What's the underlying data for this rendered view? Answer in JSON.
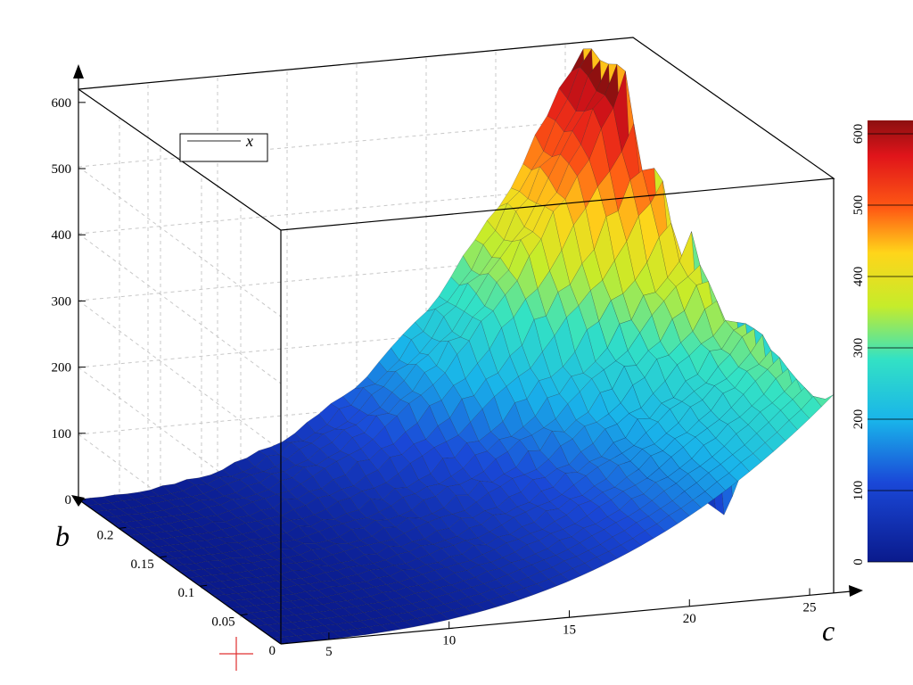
{
  "chart_data": {
    "type": "surface3d",
    "title": "",
    "xlabel": "c",
    "ylabel": "b",
    "zlabel": "",
    "xlim": [
      3,
      26
    ],
    "ylim": [
      0,
      0.25
    ],
    "zlim": [
      0,
      620
    ],
    "x_ticks": [
      5,
      10,
      15,
      20,
      25
    ],
    "y_ticks": [
      0,
      0.05,
      0.1,
      0.15,
      0.2
    ],
    "z_ticks": [
      0,
      100,
      200,
      300,
      400,
      500,
      600
    ],
    "legend": {
      "position": "top-left",
      "entries": [
        "x"
      ]
    },
    "colorbar": {
      "range": [
        0,
        600
      ],
      "ticks": [
        0,
        100,
        200,
        300,
        400,
        500,
        600
      ]
    },
    "grid": true,
    "ridges": [
      {
        "b": 0.2,
        "peak_z": 610,
        "peak_c": 24
      },
      {
        "b": 0.15,
        "peak_z": 410,
        "peak_c": 25
      },
      {
        "b": 0.1,
        "peak_z": 330,
        "peak_c": 25.5
      },
      {
        "b": 0.0,
        "peak_z": 300,
        "peak_c": 26
      }
    ]
  },
  "marker": {
    "color": "#e03030",
    "glyph": "+"
  }
}
